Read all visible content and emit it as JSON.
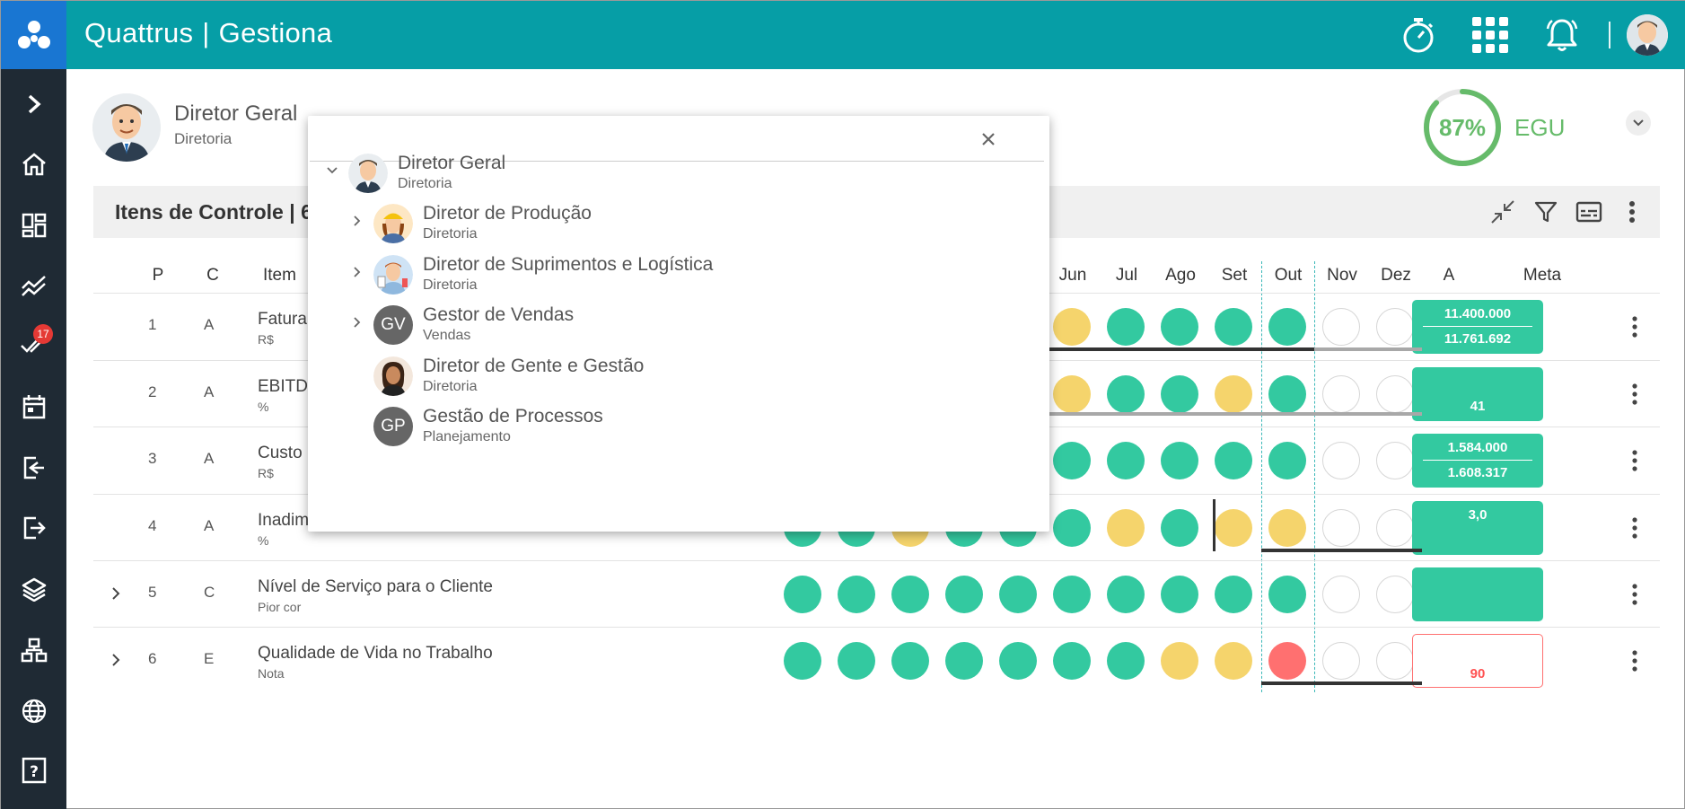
{
  "app": {
    "brand": "Quattrus",
    "module": "Gestiona"
  },
  "topbar": {
    "icons": [
      "stopwatch-icon",
      "apps-grid-icon",
      "bell-icon"
    ]
  },
  "sidebar": {
    "badge_count": "17",
    "items": [
      "chevron-right-icon",
      "home-icon",
      "dashboard-icon",
      "trend-icon",
      "checks-icon",
      "calendar-icon",
      "login-icon",
      "logout-icon",
      "layers-icon",
      "hierarchy-icon",
      "globe-icon",
      "help-icon"
    ]
  },
  "profile": {
    "name": "Diretor Geral",
    "department": "Diretoria"
  },
  "score": {
    "percent": 87,
    "percent_label": "87%",
    "label": "EGU"
  },
  "panel": {
    "title": "Itens de Controle | 6"
  },
  "columns": {
    "p": "P",
    "c": "C",
    "item": "Item",
    "months": [
      "Jun",
      "Jul",
      "Ago",
      "Set",
      "Out",
      "Nov",
      "Dez"
    ],
    "a": "A",
    "meta": "Meta"
  },
  "rows": [
    {
      "p": "1",
      "c": "A",
      "title": "Fatura",
      "unit": "R$",
      "meta1": "11.400.000",
      "meta2": "11.761.692"
    },
    {
      "p": "2",
      "c": "A",
      "title": "EBITD",
      "unit": "%",
      "meta1": "",
      "meta2": "41"
    },
    {
      "p": "3",
      "c": "A",
      "title": "Custo",
      "unit": "R$",
      "meta1": "1.584.000",
      "meta2": "1.608.317"
    },
    {
      "p": "4",
      "c": "A",
      "title": "Inadim",
      "unit": "%",
      "meta1": "3,0",
      "meta2": ""
    },
    {
      "p": "5",
      "c": "C",
      "title": "Nível de Serviço para o Cliente",
      "unit": "Pior cor",
      "meta1": "",
      "meta2": ""
    },
    {
      "p": "6",
      "c": "E",
      "title": "Qualidade de Vida no Trabalho",
      "unit": "Nota",
      "meta1": "",
      "meta2": "90"
    }
  ],
  "popup": {
    "nodes": [
      {
        "name": "Diretor Geral",
        "sub": "Diretoria"
      },
      {
        "name": "Diretor de Produção",
        "sub": "Diretoria"
      },
      {
        "name": "Diretor de Suprimentos e Logística",
        "sub": "Diretoria"
      },
      {
        "name": "Gestor de Vendas",
        "sub": "Vendas",
        "initials": "GV"
      },
      {
        "name": "Diretor de Gente e Gestão",
        "sub": "Diretoria"
      },
      {
        "name": "Gestão de Processos",
        "sub": "Planejamento",
        "initials": "GP"
      }
    ]
  },
  "colors": {
    "topbar": "#069ea6",
    "sidebar": "#1f2a34",
    "green": "#33c9a0",
    "yellow": "#f5d46c",
    "red": "#ff7070"
  }
}
